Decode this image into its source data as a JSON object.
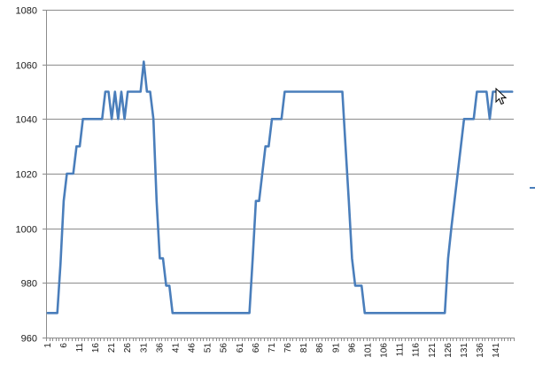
{
  "chart_data": {
    "type": "line",
    "title": "",
    "xlabel": "",
    "ylabel": "",
    "ylim": [
      960,
      1080
    ],
    "y_ticks": [
      "960",
      "980",
      "1000",
      "1020",
      "1040",
      "1060",
      "1080"
    ],
    "x_tick_labels": [
      "1",
      "6",
      "11",
      "16",
      "21",
      "26",
      "31",
      "36",
      "41",
      "46",
      "51",
      "56",
      "61",
      "66",
      "71",
      "76",
      "81",
      "86",
      "91",
      "96",
      "101",
      "106",
      "111",
      "116",
      "121",
      "126",
      "131",
      "136",
      "141"
    ],
    "grid": "horizontal",
    "legend": "right (clipped)",
    "series_color": "#4a7ebb",
    "series": [
      {
        "values": [
          969,
          969,
          969,
          969,
          987,
          1010,
          1020,
          1020,
          1020,
          1030,
          1030,
          1040,
          1040,
          1040,
          1040,
          1040,
          1040,
          1040,
          1050,
          1050,
          1040,
          1050,
          1040,
          1050,
          1040,
          1050,
          1050,
          1050,
          1050,
          1050,
          1061,
          1050,
          1050,
          1040,
          1010,
          989,
          989,
          979,
          979,
          969,
          969,
          969,
          969,
          969,
          969,
          969,
          969,
          969,
          969,
          969,
          969,
          969,
          969,
          969,
          969,
          969,
          969,
          969,
          969,
          969,
          969,
          969,
          969,
          969,
          989,
          1010,
          1010,
          1020,
          1030,
          1030,
          1040,
          1040,
          1040,
          1040,
          1050,
          1050,
          1050,
          1050,
          1050,
          1050,
          1050,
          1050,
          1050,
          1050,
          1050,
          1050,
          1050,
          1050,
          1050,
          1050,
          1050,
          1050,
          1050,
          1030,
          1010,
          989,
          979,
          979,
          979,
          969,
          969,
          969,
          969,
          969,
          969,
          969,
          969,
          969,
          969,
          969,
          969,
          969,
          969,
          969,
          969,
          969,
          969,
          969,
          969,
          969,
          969,
          969,
          969,
          969,
          969,
          989,
          1000,
          1010,
          1020,
          1030,
          1040,
          1040,
          1040,
          1040,
          1050,
          1050,
          1050,
          1050,
          1040,
          1050,
          1050,
          1050,
          1050,
          1050,
          1050,
          1050
        ]
      }
    ]
  },
  "ui": {
    "cursor_icon": "mouse-pointer-icon",
    "legend_key_icon": "legend-key-icon"
  }
}
